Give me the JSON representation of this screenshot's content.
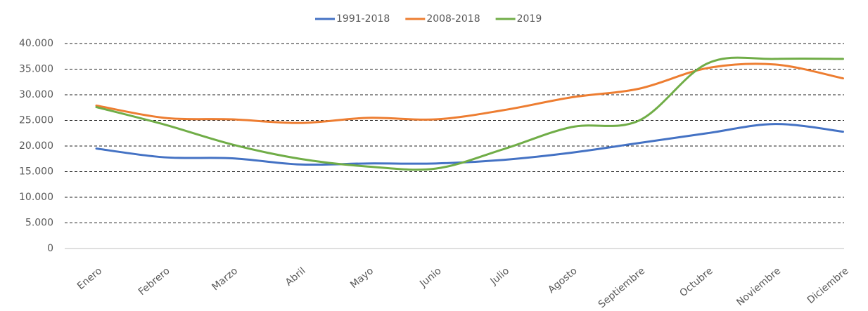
{
  "chart_data": {
    "type": "line",
    "categories": [
      "Enero",
      "Febrero",
      "Marzo",
      "Abril",
      "Mayo",
      "Junio",
      "Julio",
      "Agosto",
      "Septiembre",
      "Octubre",
      "Noviembre",
      "Diciembre"
    ],
    "series": [
      {
        "name": "1991-2018",
        "color": "#4472c4",
        "values": [
          19500,
          17800,
          17600,
          16400,
          16600,
          16600,
          17300,
          18700,
          20600,
          22500,
          24300,
          22800
        ]
      },
      {
        "name": "2008-2018",
        "color": "#ed7d31",
        "values": [
          27900,
          25500,
          25200,
          24500,
          25500,
          25200,
          27000,
          29500,
          31200,
          35200,
          35900,
          33200
        ]
      },
      {
        "name": "2019",
        "color": "#70ad47",
        "values": [
          27600,
          24200,
          20300,
          17500,
          16000,
          15600,
          19400,
          23700,
          25000,
          36100,
          37000,
          37000
        ]
      }
    ],
    "ylim": [
      0,
      40000
    ],
    "yticks": [
      0,
      {
        "value": 5000,
        "label": "5.000"
      },
      {
        "value": 10000,
        "label": "10.000"
      },
      {
        "value": 15000,
        "label": "15.000"
      },
      {
        "value": 20000,
        "label": "20.000"
      },
      {
        "value": 25000,
        "label": "25.000"
      },
      {
        "value": 30000,
        "label": "30.000"
      },
      {
        "value": 35000,
        "label": "35.000"
      },
      {
        "value": 40000,
        "label": "40.000"
      }
    ],
    "grid": true,
    "smooth": true,
    "legend": "top"
  }
}
